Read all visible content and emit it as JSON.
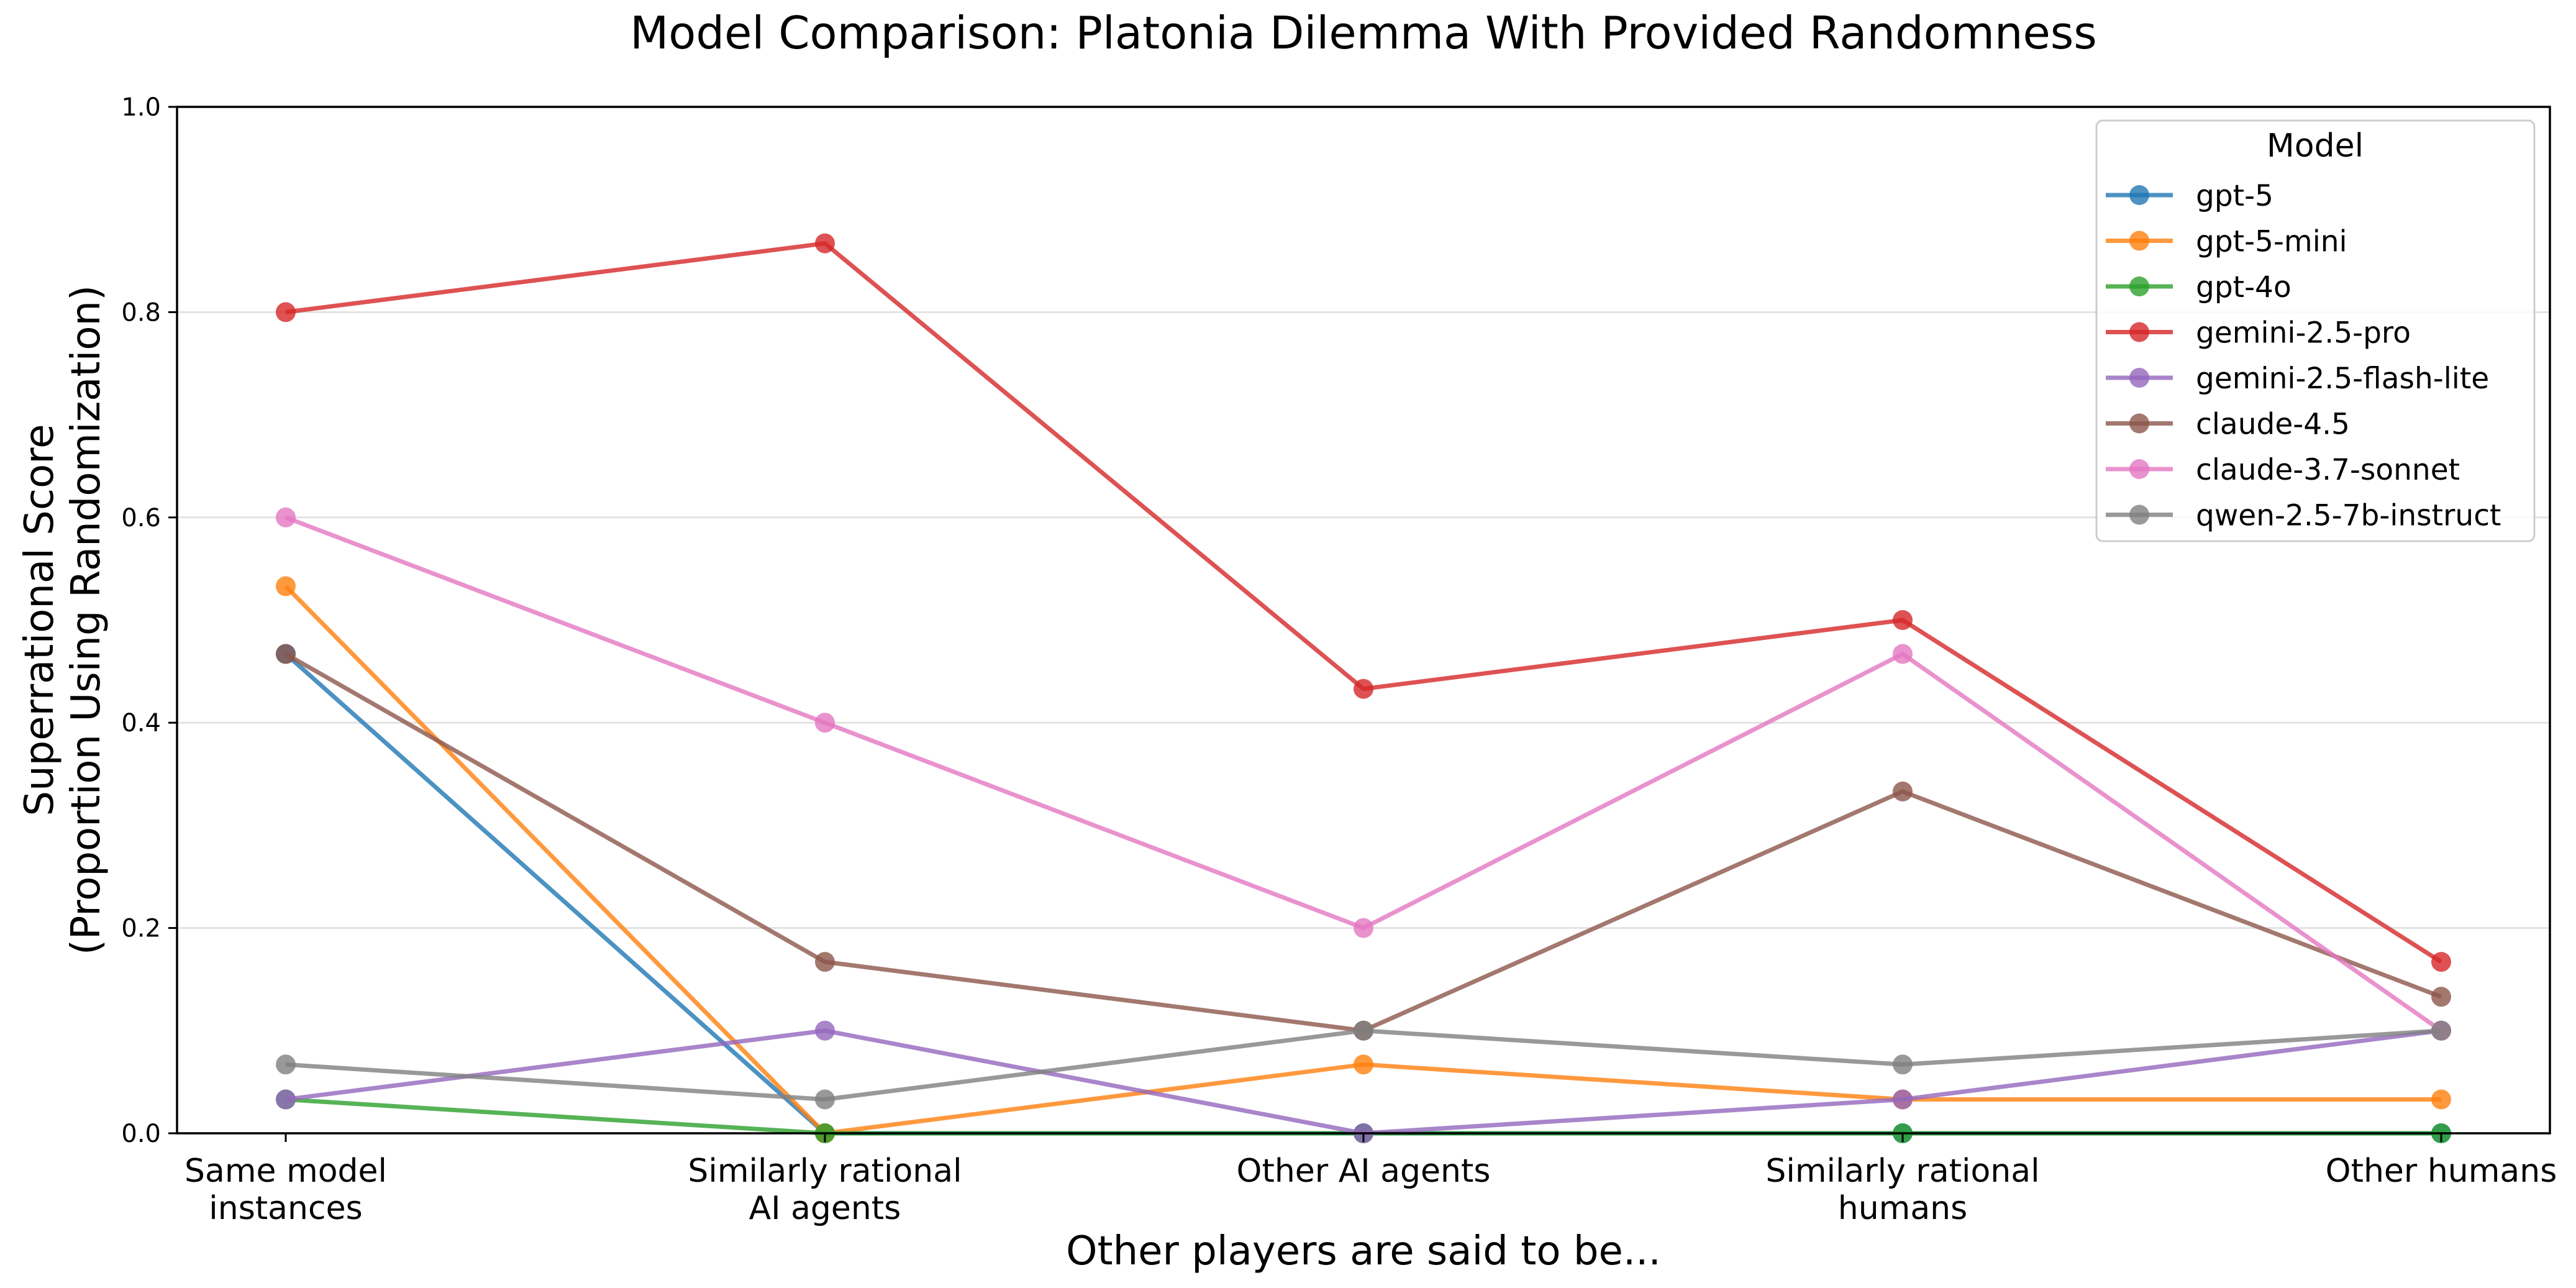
{
  "chart_data": {
    "type": "line",
    "title": "Model Comparison: Platonia Dilemma With Provided Randomness",
    "xlabel": "Other players are said to be...",
    "ylabel_lines": [
      "Superrational Score",
      "(Proportion Using Randomization)"
    ],
    "categories": [
      [
        "Same model",
        "instances"
      ],
      [
        "Similarly rational",
        "AI agents"
      ],
      [
        "Other AI agents"
      ],
      [
        "Similarly rational",
        "humans"
      ],
      [
        "Other humans"
      ]
    ],
    "ylim": [
      0,
      1.0
    ],
    "yticks": [
      "0.0",
      "0.2",
      "0.4",
      "0.6",
      "0.8",
      "1.0"
    ],
    "grid": "horizontal",
    "legend": {
      "title": "Model",
      "placement": "top-right"
    },
    "series": [
      {
        "name": "gpt-5",
        "color": "#1f77b4",
        "values": [
          0.467,
          0.0,
          0.0,
          0.0,
          0.0
        ]
      },
      {
        "name": "gpt-5-mini",
        "color": "#ff7f0e",
        "values": [
          0.533,
          0.0,
          0.067,
          0.033,
          0.033
        ]
      },
      {
        "name": "gpt-4o",
        "color": "#2ca02c",
        "values": [
          0.033,
          0.0,
          0.0,
          0.0,
          0.0
        ]
      },
      {
        "name": "gemini-2.5-pro",
        "color": "#d62728",
        "values": [
          0.8,
          0.867,
          0.433,
          0.5,
          0.167
        ]
      },
      {
        "name": "gemini-2.5-flash-lite",
        "color": "#9467bd",
        "values": [
          0.033,
          0.1,
          0.0,
          0.033,
          0.1
        ]
      },
      {
        "name": "claude-4.5",
        "color": "#8c564b",
        "values": [
          0.467,
          0.167,
          0.1,
          0.333,
          0.133
        ]
      },
      {
        "name": "claude-3.7-sonnet",
        "color": "#e377c2",
        "values": [
          0.6,
          0.4,
          0.2,
          0.467,
          0.1
        ]
      },
      {
        "name": "qwen-2.5-7b-instruct",
        "color": "#7f7f7f",
        "values": [
          0.067,
          0.033,
          0.1,
          0.067,
          0.1
        ]
      }
    ]
  }
}
